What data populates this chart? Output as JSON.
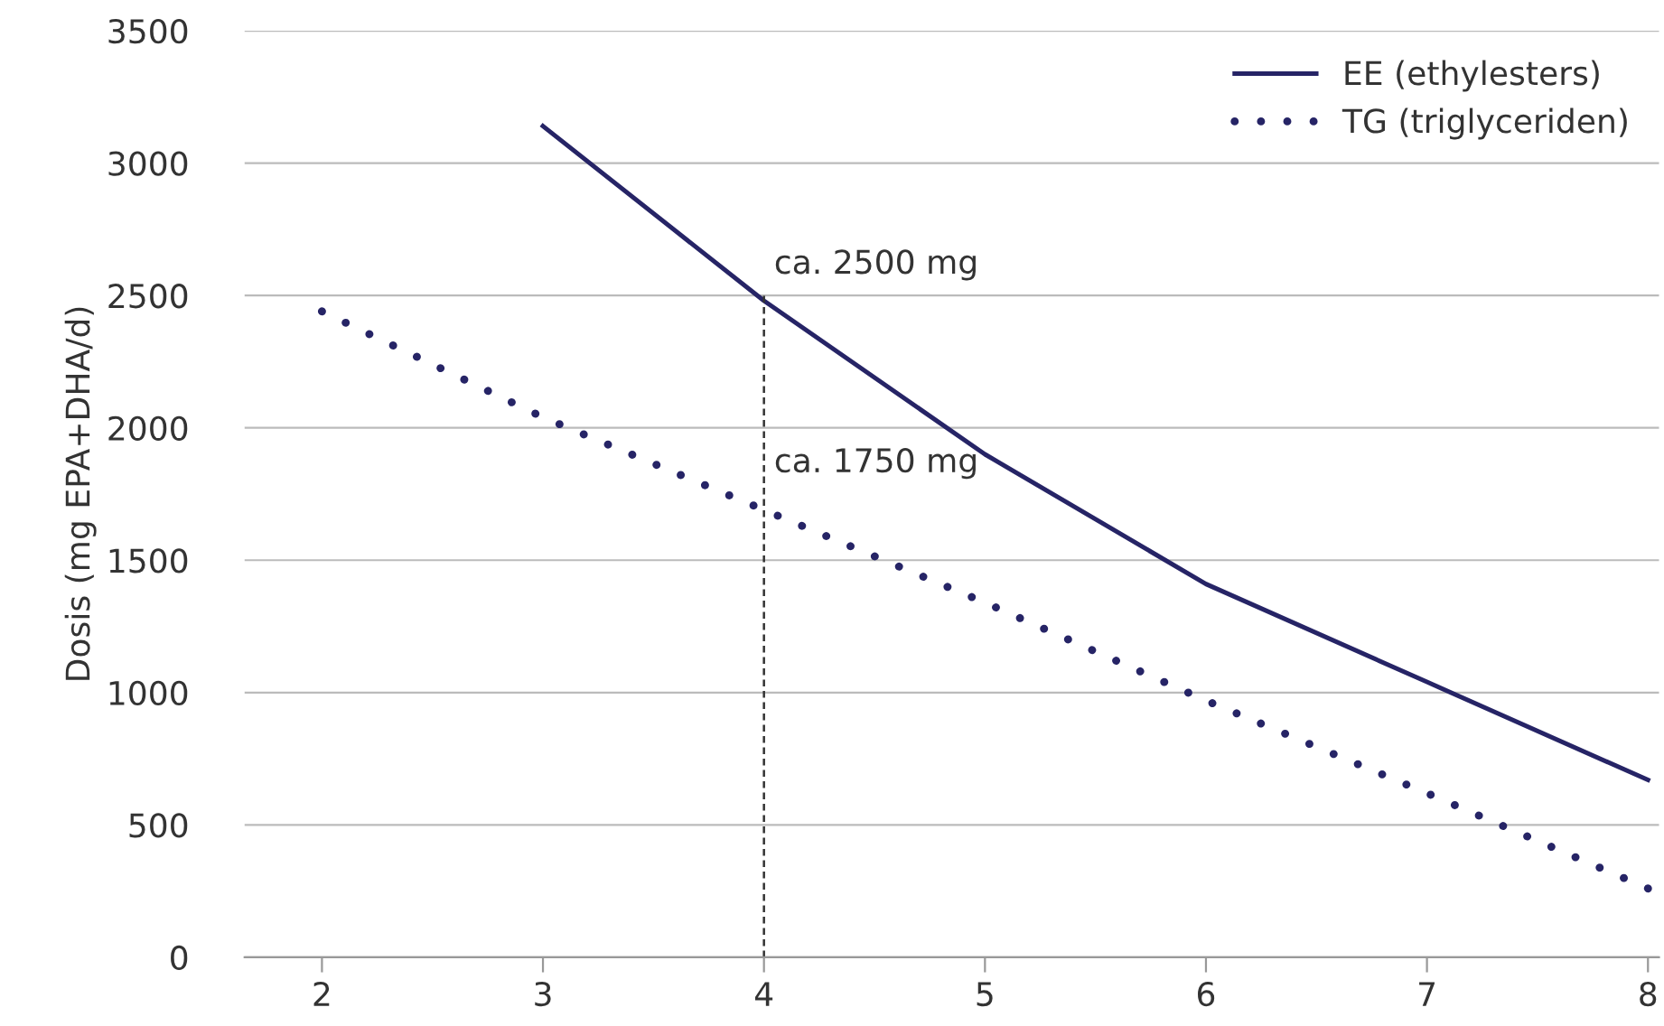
{
  "chart_data": {
    "type": "line",
    "ylabel": "Dosis (mg EPA+DHA/d)",
    "x": [
      2,
      3,
      4,
      5,
      6,
      7,
      8
    ],
    "series": [
      {
        "name": "EE (ethylesters)",
        "color": "#262466",
        "line_style": "solid",
        "values": [
          null,
          3140,
          2480,
          1900,
          1410,
          1040,
          670
        ]
      },
      {
        "name": "TG (triglyceriden)",
        "color": "#262466",
        "line_style": "dotted",
        "values": [
          2440,
          2040,
          1690,
          1340,
          970,
          620,
          260
        ]
      }
    ],
    "xlim": [
      1.65,
      8.05
    ],
    "xticks": [
      2,
      3,
      4,
      5,
      6,
      7,
      8
    ],
    "ylim": [
      0,
      3500
    ],
    "yticks": [
      0,
      500,
      1000,
      1500,
      2000,
      2500,
      3000,
      3500
    ],
    "ref_lines": [
      {
        "axis": "x",
        "value": 4,
        "color": "#333333",
        "line_style": "dashed"
      }
    ],
    "annotations": [
      {
        "text": "ca. 2500 mg",
        "x": 4,
        "y": 2500
      },
      {
        "text": "ca. 1750 mg",
        "x": 4,
        "y": 1750
      }
    ],
    "grid": "y",
    "legend": "top right",
    "marker": "none"
  }
}
